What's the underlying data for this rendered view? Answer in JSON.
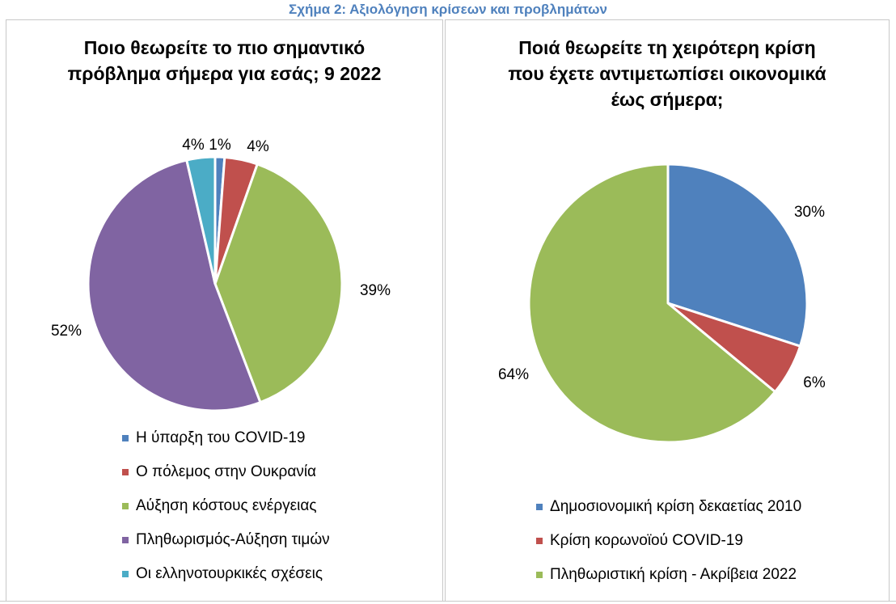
{
  "figure": {
    "caption": "Σχήμα 2: Αξιολόγηση κρίσεων και προβλημάτων"
  },
  "chart_data": [
    {
      "type": "pie",
      "title_lines": [
        "Ποιο θεωρείτε το πιο σημαντικό",
        "πρόβλημα σήμερα για εσάς; 9 2022"
      ],
      "slices": [
        {
          "label": "Η ύπαρξη του COVID-19",
          "value": 1.2,
          "value_label": "1%",
          "color": "#4f81bd"
        },
        {
          "label": "Ο πόλεμος στην Ουκρανία",
          "value": 4.2,
          "value_label": "4%",
          "color": "#c0504d"
        },
        {
          "label": "Αύξηση κόστους ενέργειας",
          "value": 38.8,
          "value_label": "39%",
          "color": "#9bbb59"
        },
        {
          "label": "Πληθωρισμός-Αύξηση τιμών",
          "value": 52.2,
          "value_label": "52%",
          "color": "#8064a2"
        },
        {
          "label": "Οι ελληνοτουρκικές σχέσεις",
          "value": 3.6,
          "value_label": "4%",
          "color": "#4bacc6"
        }
      ],
      "legend_position": "bottom"
    },
    {
      "type": "pie",
      "title_lines": [
        "Ποιά θεωρείτε τη χειρότερη κρίση",
        "που έχετε αντιμετωπίσει οικονομικά",
        "έως σήμερα;"
      ],
      "slices": [
        {
          "label": "Δημοσιονομική κρίση δεκαετίας 2010",
          "value": 30,
          "value_label": "30%",
          "color": "#4f81bd"
        },
        {
          "label": "Κρίση κορωνοϊού COVID-19",
          "value": 6,
          "value_label": "6%",
          "color": "#c0504d"
        },
        {
          "label": "Πληθωριστική κρίση - Ακρίβεια 2022",
          "value": 64,
          "value_label": "64%",
          "color": "#9bbb59"
        }
      ],
      "legend_position": "bottom"
    }
  ]
}
